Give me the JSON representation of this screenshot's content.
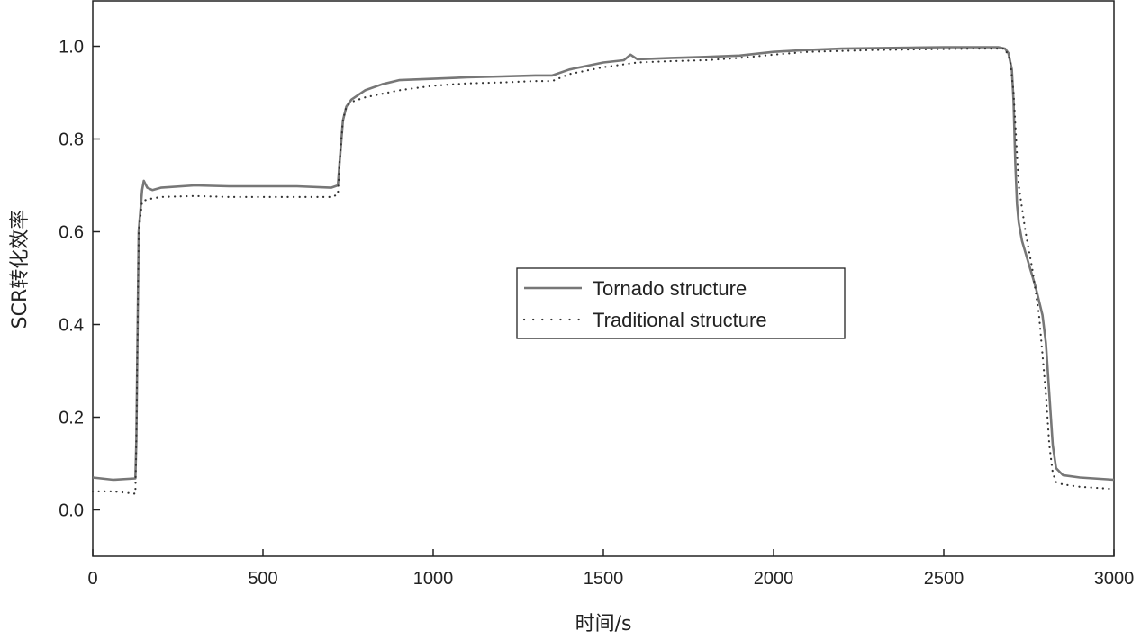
{
  "chart_data": {
    "type": "line",
    "title": "",
    "xlabel": "时间/s",
    "ylabel": "SCR转化效率",
    "xlim": [
      0,
      3000
    ],
    "ylim": [
      -0.1,
      1.1
    ],
    "xticks": [
      0,
      500,
      1000,
      1500,
      2000,
      2500,
      3000
    ],
    "yticks": [
      0.0,
      0.2,
      0.4,
      0.6,
      0.8,
      1.0
    ],
    "xtick_labels": [
      "0",
      "500",
      "1000",
      "1500",
      "2000",
      "2500",
      "3000"
    ],
    "ytick_labels": [
      "0.0",
      "0.2",
      "0.4",
      "0.6",
      "0.8",
      "1.0"
    ],
    "grid": false,
    "legend_position": "center-right",
    "series": [
      {
        "name": "Tornado structure",
        "style": "solid",
        "color": "#777777",
        "x": [
          0,
          60,
          125,
          128,
          135,
          145,
          150,
          160,
          175,
          200,
          300,
          400,
          500,
          600,
          700,
          720,
          725,
          735,
          745,
          760,
          780,
          800,
          850,
          900,
          1000,
          1100,
          1200,
          1300,
          1350,
          1400,
          1500,
          1560,
          1580,
          1600,
          1700,
          1800,
          1900,
          2000,
          2100,
          2200,
          2300,
          2400,
          2500,
          2600,
          2660,
          2680,
          2690,
          2700,
          2705,
          2710,
          2715,
          2720,
          2730,
          2750,
          2770,
          2790,
          2800,
          2810,
          2820,
          2830,
          2850,
          2900,
          3000
        ],
        "y": [
          0.07,
          0.065,
          0.068,
          0.15,
          0.6,
          0.69,
          0.71,
          0.695,
          0.69,
          0.695,
          0.7,
          0.698,
          0.698,
          0.698,
          0.695,
          0.7,
          0.75,
          0.84,
          0.87,
          0.885,
          0.895,
          0.905,
          0.918,
          0.927,
          0.93,
          0.933,
          0.935,
          0.937,
          0.937,
          0.95,
          0.965,
          0.97,
          0.982,
          0.972,
          0.975,
          0.977,
          0.98,
          0.988,
          0.992,
          0.995,
          0.996,
          0.997,
          0.998,
          0.998,
          0.998,
          0.995,
          0.985,
          0.95,
          0.88,
          0.75,
          0.66,
          0.62,
          0.58,
          0.53,
          0.48,
          0.42,
          0.36,
          0.25,
          0.14,
          0.09,
          0.075,
          0.07,
          0.065
        ]
      },
      {
        "name": "Traditional structure",
        "style": "dotted",
        "color": "#333333",
        "x": [
          0,
          60,
          125,
          128,
          135,
          145,
          160,
          200,
          300,
          400,
          500,
          600,
          700,
          720,
          725,
          735,
          745,
          760,
          800,
          900,
          1000,
          1100,
          1200,
          1300,
          1350,
          1400,
          1500,
          1600,
          1700,
          1800,
          1900,
          2000,
          2100,
          2200,
          2300,
          2400,
          2500,
          2600,
          2680,
          2695,
          2705,
          2720,
          2740,
          2760,
          2780,
          2800,
          2810,
          2820,
          2830,
          2850,
          2900,
          3000
        ],
        "y": [
          0.04,
          0.04,
          0.035,
          0.15,
          0.6,
          0.665,
          0.67,
          0.675,
          0.677,
          0.675,
          0.675,
          0.675,
          0.675,
          0.68,
          0.75,
          0.84,
          0.87,
          0.88,
          0.89,
          0.905,
          0.915,
          0.92,
          0.922,
          0.925,
          0.925,
          0.94,
          0.955,
          0.965,
          0.968,
          0.97,
          0.975,
          0.982,
          0.988,
          0.99,
          0.992,
          0.993,
          0.994,
          0.995,
          0.995,
          0.97,
          0.9,
          0.7,
          0.6,
          0.52,
          0.42,
          0.25,
          0.14,
          0.08,
          0.06,
          0.055,
          0.05,
          0.045
        ]
      }
    ]
  }
}
